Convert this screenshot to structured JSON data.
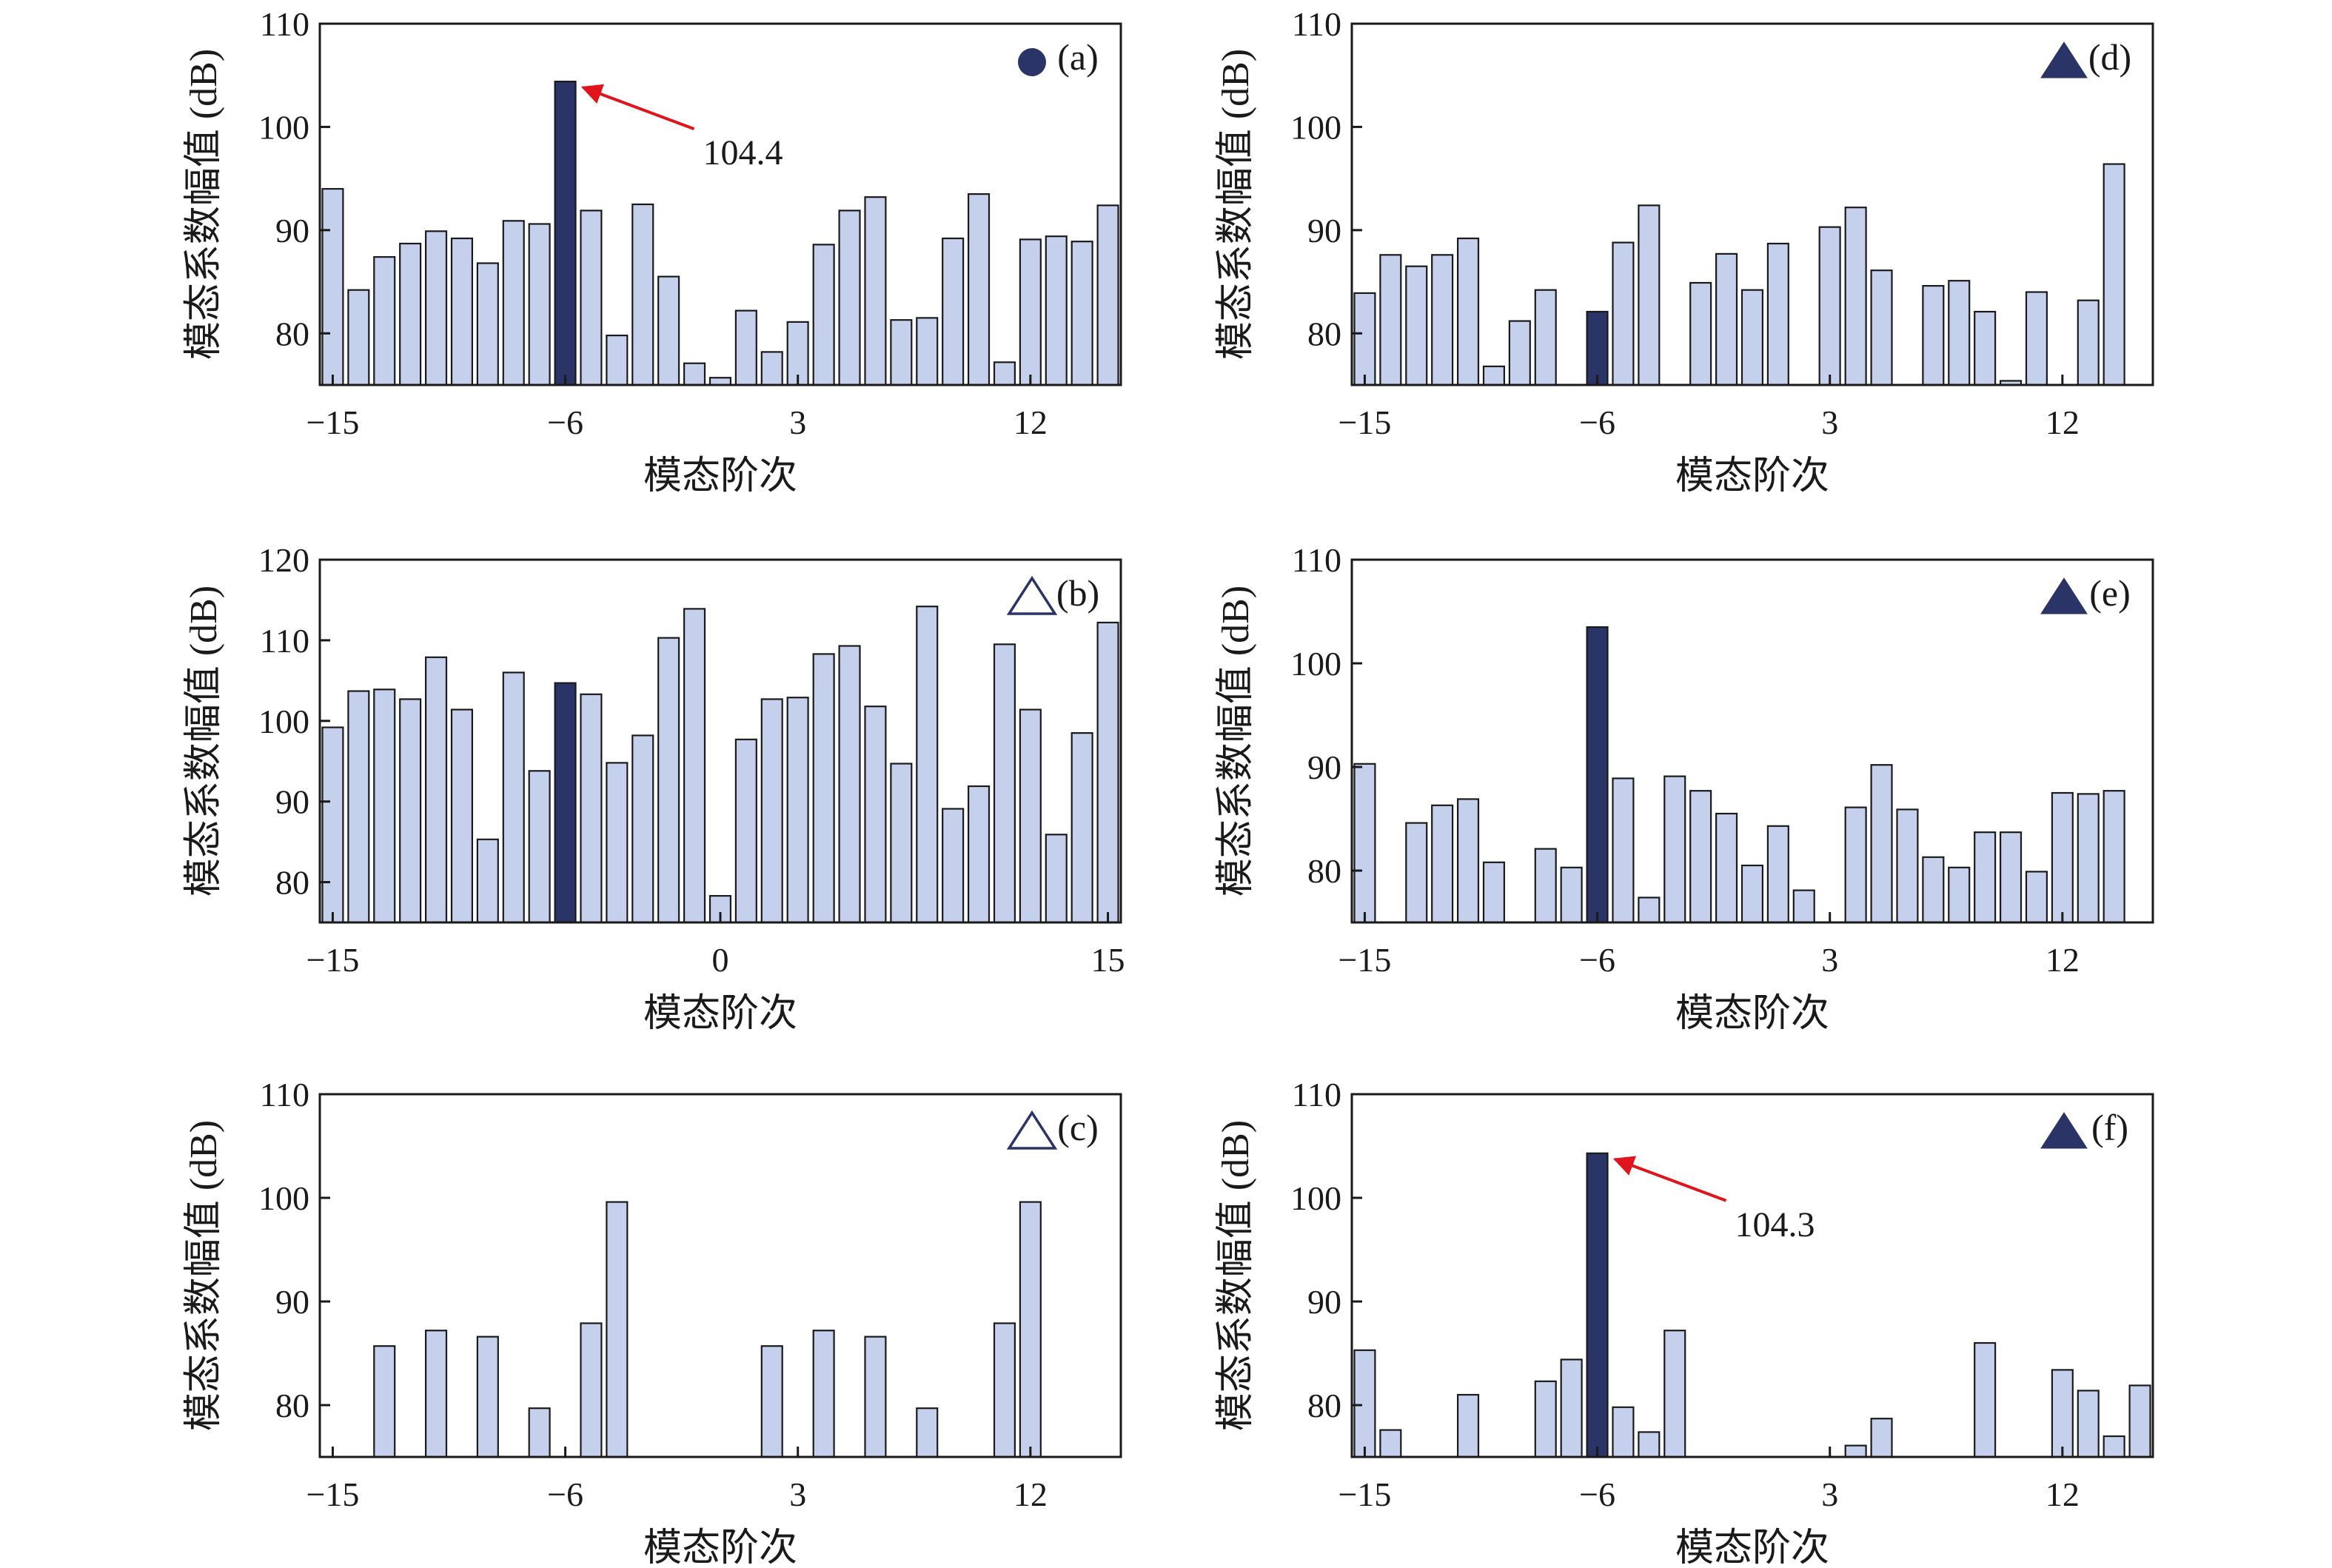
{
  "figure": {
    "colors": {
      "bar": "#c5d1ec",
      "bar_stroke": "#1a1a1a",
      "highlight": "#2b3467",
      "arrow": "#e0151b",
      "axis": "#1a1a1a"
    }
  },
  "chart_data": [
    {
      "type": "bar",
      "panel": "a",
      "label": "(a)",
      "marker": "filled-circle",
      "xlabel": "模态阶次",
      "ylabel": "模态系数幅值 (dB)",
      "x": [
        -15,
        -14,
        -13,
        -12,
        -11,
        -10,
        -9,
        -8,
        -7,
        -6,
        -5,
        -4,
        -3,
        -2,
        -1,
        0,
        1,
        2,
        3,
        4,
        5,
        6,
        7,
        8,
        9,
        10,
        11,
        12,
        13,
        14,
        15
      ],
      "values": [
        94,
        84.2,
        87.4,
        88.7,
        89.9,
        89.2,
        86.8,
        90.9,
        90.6,
        104.4,
        91.9,
        79.8,
        92.5,
        85.5,
        77.1,
        75.7,
        82.2,
        78.2,
        81.1,
        88.6,
        91.9,
        93.2,
        81.3,
        81.5,
        89.2,
        93.5,
        77.2,
        89.1,
        89.4,
        88.9,
        92.4
      ],
      "highlight_index": 9,
      "xticks": [
        -15,
        -6,
        3,
        12
      ],
      "xticklabels": [
        "−15",
        "−6",
        "3",
        "12"
      ],
      "yticks": [
        80,
        90,
        100,
        110
      ],
      "xlim": [
        -15.5,
        15.5
      ],
      "ylim": [
        75,
        110
      ],
      "annotation": {
        "text": "104.4",
        "x": -6
      }
    },
    {
      "type": "bar",
      "panel": "b",
      "label": "(b)",
      "marker": "open-triangle",
      "xlabel": "模态阶次",
      "ylabel": "模态系数幅值 (dB)",
      "x": [
        -15,
        -14,
        -13,
        -12,
        -11,
        -10,
        -9,
        -8,
        -7,
        -6,
        -5,
        -4,
        -3,
        -2,
        -1,
        0,
        1,
        2,
        3,
        4,
        5,
        6,
        7,
        8,
        9,
        10,
        11,
        12,
        13,
        14,
        15
      ],
      "values": [
        99.2,
        103.7,
        103.9,
        102.7,
        107.9,
        101.4,
        85.3,
        106,
        93.8,
        104.7,
        103.3,
        94.8,
        98.2,
        110.3,
        113.9,
        78.3,
        97.7,
        102.7,
        102.9,
        108.3,
        109.3,
        101.8,
        94.7,
        114.2,
        89.1,
        91.9,
        109.5,
        101.4,
        85.9,
        98.5,
        112.2
      ],
      "highlight_index": 9,
      "xticks": [
        -15,
        0,
        15
      ],
      "xticklabels": [
        "−15",
        "0",
        "15"
      ],
      "yticks": [
        80,
        90,
        100,
        110,
        120
      ],
      "xlim": [
        -15.5,
        15.5
      ],
      "ylim": [
        75,
        120
      ]
    },
    {
      "type": "bar",
      "panel": "c",
      "label": "(c)",
      "marker": "open-triangle",
      "xlabel": "模态阶次",
      "ylabel": "模态系数幅值 (dB)",
      "x": [
        -13,
        -11,
        -9,
        -7,
        -5,
        -4,
        2,
        4,
        6,
        8,
        11,
        12
      ],
      "values": [
        85.7,
        87.2,
        86.6,
        79.7,
        87.9,
        99.6,
        85.7,
        87.2,
        86.6,
        79.7,
        87.9,
        99.6
      ],
      "highlight_index": -1,
      "xticks": [
        -15,
        -6,
        3,
        12
      ],
      "xticklabels": [
        "−15",
        "−6",
        "3",
        "12"
      ],
      "yticks": [
        80,
        90,
        100,
        110
      ],
      "xlim": [
        -15.5,
        15.5
      ],
      "ylim": [
        75,
        110
      ]
    },
    {
      "type": "bar",
      "panel": "d",
      "label": "(d)",
      "marker": "filled-triangle",
      "xlabel": "模态阶次",
      "ylabel": "模态系数幅值 (dB)",
      "x": [
        -15,
        -14,
        -13,
        -12,
        -11,
        -10,
        -9,
        -8,
        -6,
        -5,
        -4,
        -2,
        -1,
        0,
        1,
        3,
        4,
        5,
        7,
        8,
        9,
        10,
        11,
        13,
        14
      ],
      "values": [
        83.9,
        87.6,
        86.5,
        87.6,
        89.2,
        76.8,
        81.2,
        84.2,
        82.1,
        88.8,
        92.4,
        84.9,
        87.7,
        84.2,
        88.7,
        90.3,
        92.2,
        86.1,
        84.6,
        85.1,
        82.1,
        75.4,
        84,
        83.2,
        96.4
      ],
      "highlight_index": 8,
      "xticks": [
        -15,
        -6,
        3,
        12
      ],
      "xticklabels": [
        "−15",
        "−6",
        "3",
        "12"
      ],
      "yticks": [
        80,
        90,
        100,
        110
      ],
      "xlim": [
        -15.5,
        15.5
      ],
      "ylim": [
        75,
        110
      ]
    },
    {
      "type": "bar",
      "panel": "e",
      "label": "(e)",
      "marker": "filled-triangle",
      "xlabel": "模态阶次",
      "ylabel": "模态系数幅值 (dB)",
      "x": [
        -15,
        -13,
        -12,
        -11,
        -10,
        -8,
        -7,
        -6,
        -5,
        -4,
        -3,
        -2,
        -1,
        0,
        1,
        2,
        4,
        5,
        6,
        7,
        8,
        9,
        10,
        11,
        12,
        13,
        14
      ],
      "values": [
        90.3,
        84.6,
        86.3,
        86.9,
        80.8,
        82.1,
        80.3,
        103.5,
        88.9,
        77.4,
        89.1,
        87.7,
        85.5,
        80.5,
        84.3,
        78.1,
        86.1,
        90.2,
        85.9,
        81.3,
        80.3,
        83.7,
        83.7,
        79.9,
        87.5,
        87.4,
        87.7
      ],
      "highlight_index": 7,
      "xticks": [
        -15,
        -6,
        3,
        12
      ],
      "xticklabels": [
        "−15",
        "−6",
        "3",
        "12"
      ],
      "yticks": [
        80,
        90,
        100,
        110
      ],
      "xlim": [
        -15.5,
        15.5
      ],
      "ylim": [
        75,
        110
      ]
    },
    {
      "type": "bar",
      "panel": "f",
      "label": "(f)",
      "marker": "filled-triangle",
      "xlabel": "模态阶次",
      "ylabel": "模态系数幅值 (dB)",
      "x": [
        -15,
        -14,
        -11,
        -8,
        -7,
        -6,
        -5,
        -4,
        -3,
        4,
        5,
        9,
        12,
        13,
        14,
        15
      ],
      "values": [
        85.3,
        77.6,
        81,
        82.3,
        84.4,
        104.3,
        79.8,
        77.4,
        87.2,
        76.1,
        78.7,
        86,
        83.4,
        81.4,
        77,
        81.9
      ],
      "highlight_index": 5,
      "xticks": [
        -15,
        -6,
        3,
        12
      ],
      "xticklabels": [
        "−15",
        "−6",
        "3",
        "12"
      ],
      "yticks": [
        80,
        90,
        100,
        110
      ],
      "xlim": [
        -15.5,
        15.5
      ],
      "ylim": [
        75,
        110
      ],
      "annotation": {
        "text": "104.3",
        "x": -6
      }
    }
  ]
}
